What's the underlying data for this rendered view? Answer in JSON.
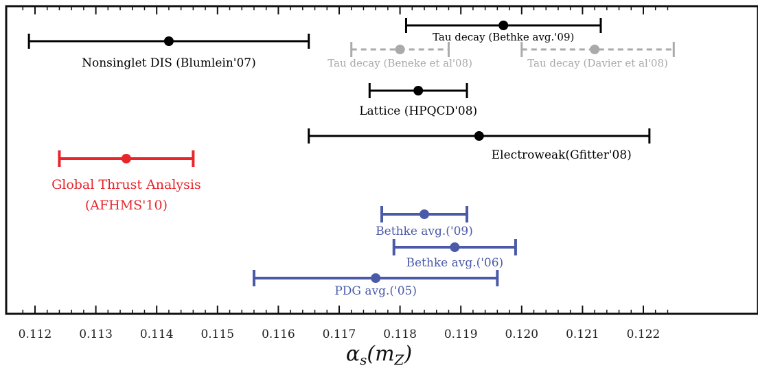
{
  "chart_data": {
    "type": "errorbar",
    "xlabel": "αs(mZ)",
    "xlim": [
      0.112,
      0.1225
    ],
    "x_ticks": [
      0.112,
      0.113,
      0.114,
      0.115,
      0.116,
      0.117,
      0.118,
      0.119,
      0.12,
      0.121,
      0.122
    ],
    "x_tick_labels": [
      "0.112",
      "0.113",
      "0.114",
      "0.115",
      "0.116",
      "0.117",
      "0.118",
      "0.119",
      "0.120",
      "0.121",
      "0.122"
    ],
    "grid": false,
    "series": [
      {
        "label": "Tau decay (Bethke avg.'09)",
        "value": 0.1197,
        "low": 0.1181,
        "high": 0.1213,
        "color": "#000000",
        "style": "solid",
        "row": 1,
        "label_pos": "below"
      },
      {
        "label": "Nonsinglet DIS (Blumlein'07)",
        "value": 0.1142,
        "low": 0.1119,
        "high": 0.1165,
        "color": "#000000",
        "style": "solid",
        "row": 2,
        "label_pos": "below"
      },
      {
        "label": "Tau decay (Beneke et al'08)",
        "value": 0.118,
        "low": 0.1172,
        "high": 0.1188,
        "color": "#aaaaaa",
        "style": "dashed",
        "row": 3,
        "label_pos": "below"
      },
      {
        "label": "Tau decay (Davier et al'08)",
        "value": 0.1212,
        "low": 0.12,
        "high": 0.1225,
        "color": "#aaaaaa",
        "style": "dashed",
        "row": 3,
        "label_pos": "below"
      },
      {
        "label": "Lattice (HPQCD'08)",
        "value": 0.1183,
        "low": 0.1175,
        "high": 0.1191,
        "color": "#000000",
        "style": "solid",
        "row": 4,
        "label_pos": "below"
      },
      {
        "label": "Electroweak(Gfitter'08)",
        "value": 0.1193,
        "low": 0.1165,
        "high": 0.1221,
        "color": "#000000",
        "style": "solid",
        "row": 5,
        "label_pos": "below"
      },
      {
        "label": "Global Thrust Analysis",
        "label2": "(AFHMS'10)",
        "value": 0.1135,
        "low": 0.1124,
        "high": 0.1146,
        "color": "#e8252b",
        "style": "solid",
        "row": 6,
        "label_pos": "below"
      },
      {
        "label": "Bethke avg.('09)",
        "value": 0.1184,
        "low": 0.1177,
        "high": 0.1191,
        "color": "#4a5aa8",
        "style": "solid",
        "row": 7,
        "label_pos": "below"
      },
      {
        "label": "Bethke avg.('06)",
        "value": 0.1189,
        "low": 0.1179,
        "high": 0.1199,
        "color": "#4a5aa8",
        "style": "solid",
        "row": 8,
        "label_pos": "below"
      },
      {
        "label": "PDG avg.('05)",
        "value": 0.1176,
        "low": 0.1156,
        "high": 0.1196,
        "color": "#4a5aa8",
        "style": "solid",
        "row": 9,
        "label_pos": "below"
      }
    ]
  }
}
